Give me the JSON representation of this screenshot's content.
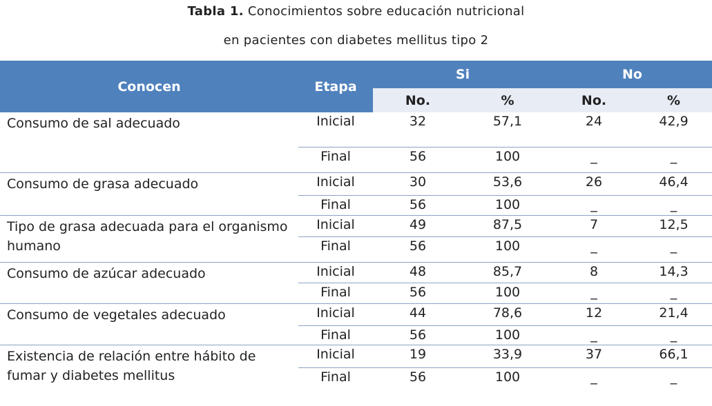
{
  "title": {
    "label": "Tabla 1.",
    "text": "Conocimientos sobre educación nutricional",
    "line2": "en pacientes con diabetes mellitus tipo 2"
  },
  "table": {
    "header": {
      "conocen": "Conocen",
      "etapa": "Etapa",
      "groups": [
        "Si",
        "No"
      ],
      "sub": [
        "No.",
        "%",
        "No.",
        "%"
      ]
    },
    "rows": [
      {
        "label": "Consumo de sal adecuado",
        "stages": [
          [
            "Inicial",
            "32",
            "57,1",
            "24",
            "42,9"
          ],
          [
            "Final",
            "56",
            "100",
            "_",
            "_"
          ]
        ]
      },
      {
        "label": "Consumo de grasa adecuado",
        "stages": [
          [
            "Inicial",
            "30",
            "53,6",
            "26",
            "46,4"
          ],
          [
            "Final",
            "56",
            "100",
            "_",
            "_"
          ]
        ]
      },
      {
        "label": "Tipo de grasa adecuada para el organismo humano",
        "stages": [
          [
            "Inicial",
            "49",
            "87,5",
            "7",
            "12,5"
          ],
          [
            "Final",
            "56",
            "100",
            "_",
            "_"
          ]
        ]
      },
      {
        "label": "Consumo de azúcar adecuado",
        "stages": [
          [
            "Inicial",
            "48",
            "85,7",
            "8",
            "14,3"
          ],
          [
            "Final",
            "56",
            "100",
            "_",
            "_"
          ]
        ]
      },
      {
        "label": "Consumo de vegetales adecuado",
        "stages": [
          [
            "Inicial",
            "44",
            "78,6",
            "12",
            "21,4"
          ],
          [
            "Final",
            "56",
            "100",
            "_",
            "_"
          ]
        ]
      },
      {
        "label": "Existencia de relación entre hábito de fumar y diabetes mellitus",
        "stages": [
          [
            "Inicial",
            "19",
            "33,9",
            "37",
            "66,1"
          ],
          [
            "Final",
            "56",
            "100",
            "_",
            "_"
          ]
        ]
      }
    ]
  }
}
